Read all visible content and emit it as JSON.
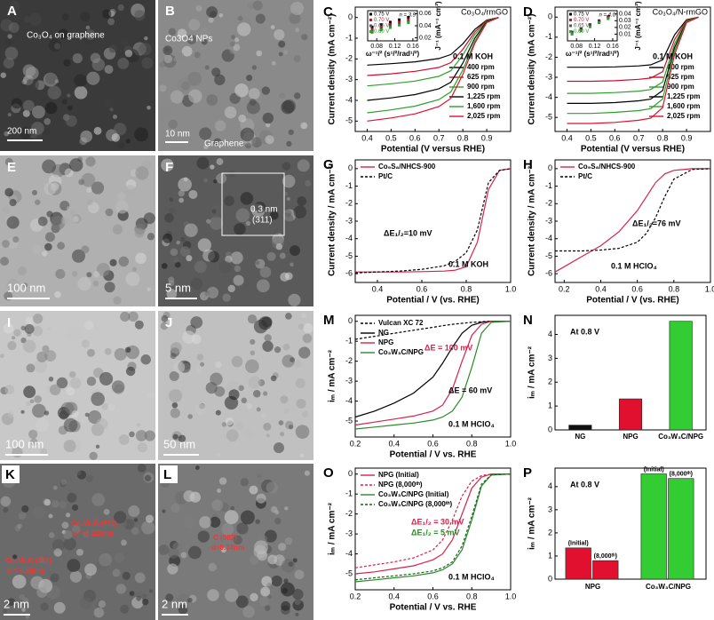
{
  "images": [
    {
      "label": "A",
      "texts": [
        "Co₃O₄ on graphene",
        "200 nm"
      ]
    },
    {
      "label": "B",
      "texts": [
        "Co3O4 NPs",
        "10 nm",
        "Graphene"
      ]
    },
    {
      "label": "E",
      "texts": [
        "100 nm"
      ]
    },
    {
      "label": "F",
      "texts": [
        "0.3 nm",
        "(311)",
        "5 nm"
      ]
    },
    {
      "label": "I",
      "texts": [
        "100 nm"
      ]
    },
    {
      "label": "J",
      "texts": [
        "50 nm"
      ]
    },
    {
      "label": "K",
      "texts": [
        "Co₃W₃C (511)",
        "d = 0.223nm",
        "Co₃W₃C (311)",
        "d = 0.33nm",
        "2 nm"
      ]
    },
    {
      "label": "L",
      "texts": [
        "C (002)",
        "d=0.34nm",
        "2 nm"
      ]
    }
  ],
  "chart_data": [
    {
      "type": "line",
      "label": "C",
      "title": "Co₃O₄/rmGO",
      "xlabel": "Potential (V versus RHE)",
      "ylabel": "Current density (mA cm⁻²)",
      "annotations": [
        {
          "text": "0.1 M KOH",
          "color": "#000"
        }
      ],
      "xlim": [
        0.35,
        1.0
      ],
      "xticks": [
        0.4,
        0.5,
        0.6,
        0.7,
        0.8,
        0.9
      ],
      "ylim": [
        -5.5,
        0.5
      ],
      "yticks": [
        -5,
        -4,
        -3,
        -2,
        -1,
        0
      ],
      "x": [
        0.4,
        0.5,
        0.6,
        0.7,
        0.75,
        0.8,
        0.85,
        0.9,
        0.95
      ],
      "series": [
        {
          "name": "400 rpm",
          "color": "#000000",
          "values": [
            -2.3,
            -2.23,
            -2.14,
            -1.98,
            -1.79,
            -1.27,
            -0.58,
            -0.12,
            0
          ]
        },
        {
          "name": "625 rpm",
          "color": "#c8102e",
          "values": [
            -2.8,
            -2.72,
            -2.6,
            -2.41,
            -2.18,
            -1.54,
            -0.7,
            -0.14,
            0
          ]
        },
        {
          "name": "900 rpm",
          "color": "#2ca02c",
          "values": [
            -3.3,
            -3.2,
            -3.07,
            -2.84,
            -2.57,
            -1.82,
            -0.83,
            -0.17,
            0
          ]
        },
        {
          "name": "1,225 rpm",
          "color": "#000000",
          "values": [
            -4.0,
            -3.88,
            -3.72,
            -3.44,
            -3.12,
            -2.2,
            -1.0,
            -0.2,
            0
          ]
        },
        {
          "name": "1,600 rpm",
          "color": "#2ca02c",
          "values": [
            -4.6,
            -4.46,
            -4.28,
            -3.96,
            -3.59,
            -2.53,
            -1.15,
            -0.23,
            0
          ]
        },
        {
          "name": "2,025 rpm",
          "color": "#e0102e",
          "values": [
            -5.0,
            -4.85,
            -4.65,
            -4.3,
            -3.9,
            -2.75,
            -1.25,
            -0.25,
            0
          ]
        }
      ],
      "inset": {
        "type": "scatter",
        "xlabel": "ω⁻¹/² (s¹/²/rad¹/²)",
        "ylabel": "J⁻¹ (mA⁻¹ cm²)",
        "annotations": [
          {
            "text": "n = 3.9",
            "color": "#000"
          }
        ],
        "xlim": [
          0.06,
          0.17
        ],
        "xticks": [
          0.08,
          0.12,
          0.16
        ],
        "ylim": [
          0.015,
          0.065
        ],
        "yticks": [
          0.02,
          0.04,
          0.06
        ],
        "x": [
          0.07,
          0.09,
          0.11,
          0.13,
          0.15
        ],
        "series": [
          {
            "name": "0.75 V",
            "color": "#000000",
            "values": [
              0.038,
              0.042,
              0.046,
              0.05,
              0.054
            ]
          },
          {
            "name": "0.70 V",
            "color": "#c8102e",
            "values": [
              0.034,
              0.038,
              0.042,
              0.046,
              0.05
            ]
          },
          {
            "name": "0.65 V",
            "color": "#555555",
            "values": [
              0.031,
              0.035,
              0.039,
              0.043,
              0.047
            ]
          },
          {
            "name": "0.60 V",
            "color": "#2ca02c",
            "values": [
              0.029,
              0.033,
              0.037,
              0.041,
              0.045
            ]
          }
        ]
      }
    },
    {
      "type": "line",
      "label": "D",
      "title": "Co₃O₄/N-rmGO",
      "xlabel": "Potential (V versus RHE)",
      "ylabel": "Current density (mA cm⁻²)",
      "annotations": [
        {
          "text": "0.1 M KOH",
          "color": "#000"
        }
      ],
      "xlim": [
        0.35,
        1.0
      ],
      "xticks": [
        0.4,
        0.5,
        0.6,
        0.7,
        0.8,
        0.9
      ],
      "ylim": [
        -5.7,
        0.5
      ],
      "yticks": [
        -5,
        -4,
        -3,
        -2,
        -1,
        0
      ],
      "x": [
        0.4,
        0.5,
        0.6,
        0.7,
        0.75,
        0.8,
        0.85,
        0.9,
        0.95
      ],
      "series": [
        {
          "name": "400 rpm",
          "color": "#000000",
          "values": [
            -2.5,
            -2.5,
            -2.48,
            -2.43,
            -2.38,
            -2.13,
            -0.88,
            -0.13,
            0
          ]
        },
        {
          "name": "625 rpm",
          "color": "#c8102e",
          "values": [
            -3.2,
            -3.2,
            -3.17,
            -3.1,
            -3.04,
            -2.72,
            -1.12,
            -0.16,
            0
          ]
        },
        {
          "name": "900 rpm",
          "color": "#2ca02c",
          "values": [
            -3.8,
            -3.8,
            -3.76,
            -3.69,
            -3.61,
            -3.23,
            -1.33,
            -0.19,
            0
          ]
        },
        {
          "name": "1,225 rpm",
          "color": "#000000",
          "values": [
            -4.3,
            -4.3,
            -4.26,
            -4.17,
            -4.09,
            -3.66,
            -1.51,
            -0.22,
            0
          ]
        },
        {
          "name": "1,600 rpm",
          "color": "#2ca02c",
          "values": [
            -4.8,
            -4.8,
            -4.75,
            -4.66,
            -4.56,
            -4.08,
            -1.68,
            -0.24,
            0
          ]
        },
        {
          "name": "2,025 rpm",
          "color": "#e0102e",
          "values": [
            -5.3,
            -5.3,
            -5.25,
            -5.14,
            -5.04,
            -4.51,
            -1.86,
            -0.27,
            0
          ]
        }
      ],
      "inset": {
        "type": "scatter",
        "xlabel": "ω⁻¹/² (s¹/²/rad¹/²)",
        "ylabel": "J⁻¹ (mA⁻¹ cm²)",
        "annotations": [
          {
            "text": "n = 4.0",
            "color": "#000"
          }
        ],
        "xlim": [
          0.06,
          0.17
        ],
        "xticks": [
          0.08,
          0.12,
          0.16
        ],
        "ylim": [
          0.0,
          0.045
        ],
        "yticks": [
          0.01,
          0.02,
          0.03,
          0.04
        ],
        "x": [
          0.07,
          0.09,
          0.11,
          0.13,
          0.15
        ],
        "series": [
          {
            "name": "0.75 V",
            "color": "#000000",
            "values": [
              0.013,
              0.018,
              0.024,
              0.03,
              0.036
            ]
          },
          {
            "name": "0.70 V",
            "color": "#c8102e",
            "values": [
              0.012,
              0.017,
              0.023,
              0.029,
              0.035
            ]
          },
          {
            "name": "0.65 V",
            "color": "#555555",
            "values": [
              0.011,
              0.016,
              0.022,
              0.028,
              0.034
            ]
          },
          {
            "name": "0.60 V",
            "color": "#2ca02c",
            "values": [
              0.01,
              0.015,
              0.021,
              0.027,
              0.033
            ]
          }
        ]
      }
    },
    {
      "type": "line",
      "label": "G",
      "xlabel": "Potential / V (vs. RHE)",
      "ylabel": "Current density / mA cm⁻²",
      "annotations": [
        {
          "text": "ΔE₁/₂=10 mV",
          "color": "#000"
        },
        {
          "text": "0.1 M KOH",
          "color": "#000"
        }
      ],
      "xlim": [
        0.3,
        1.0
      ],
      "xticks": [
        0.4,
        0.6,
        0.8,
        {
          "value": 1.0,
          "label": "1.0"
        }
      ],
      "ylim": [
        -6.5,
        0.5
      ],
      "yticks": [
        -6,
        -5,
        -4,
        -3,
        -2,
        -1,
        0
      ],
      "x": [
        0.3,
        0.4,
        0.5,
        0.6,
        0.7,
        0.75,
        0.8,
        0.85,
        0.9,
        0.95,
        1.0
      ],
      "series": [
        {
          "name": "Co₉S₈/NHCS-900",
          "color": "#d6224b",
          "dashed": false,
          "values": [
            -5.9,
            -5.9,
            -5.9,
            -5.88,
            -5.85,
            -5.8,
            -5.6,
            -4.2,
            -1.2,
            -0.1,
            0
          ]
        },
        {
          "name": "Pt/C",
          "color": "#000000",
          "dashed": true,
          "values": [
            -5.95,
            -5.9,
            -5.85,
            -5.75,
            -5.55,
            -5.3,
            -4.8,
            -3.5,
            -0.8,
            -0.1,
            0
          ]
        }
      ]
    },
    {
      "type": "line",
      "label": "H",
      "xlabel": "Potential / V (vs. RHE)",
      "ylabel": "Current density / mA cm⁻²",
      "annotations": [
        {
          "text": "ΔE₁/₂=76 mV",
          "color": "#000"
        },
        {
          "text": "0.1 M HClO₄",
          "color": "#000"
        }
      ],
      "xlim": [
        0.15,
        1.0
      ],
      "xticks": [
        0.2,
        0.4,
        0.6,
        0.8,
        {
          "value": 1.0,
          "label": "1.0"
        }
      ],
      "ylim": [
        -6.5,
        0.5
      ],
      "yticks": [
        -6,
        -5,
        -4,
        -3,
        -2,
        -1,
        0
      ],
      "x": [
        0.15,
        0.2,
        0.3,
        0.4,
        0.5,
        0.6,
        0.65,
        0.7,
        0.75,
        0.8,
        0.9,
        1.0
      ],
      "series": [
        {
          "name": "Co₉S₈/NHCS-900",
          "color": "#d6224b",
          "dashed": false,
          "values": [
            -5.9,
            -5.6,
            -5.0,
            -4.4,
            -3.6,
            -2.4,
            -1.6,
            -0.8,
            -0.3,
            -0.1,
            0,
            0
          ]
        },
        {
          "name": "Pt/C",
          "color": "#000000",
          "dashed": true,
          "values": [
            -4.7,
            -4.7,
            -4.7,
            -4.65,
            -4.55,
            -4.2,
            -3.7,
            -2.8,
            -1.6,
            -0.6,
            -0.05,
            0
          ]
        }
      ]
    },
    {
      "type": "line",
      "label": "M",
      "xlabel": "Potential / V vs. RHE",
      "ylabel": "iₘ / mA cm⁻²",
      "annotations": [
        {
          "text": "ΔE = 100 mV",
          "color": "#d6224b"
        },
        {
          "text": "ΔE = 60 mV",
          "color": "#000"
        },
        {
          "text": "0.1 M HClO₄",
          "color": "#000"
        }
      ],
      "xlim": [
        0.2,
        1.0
      ],
      "xticks": [
        0.2,
        0.4,
        0.6,
        0.8,
        {
          "value": 1.0,
          "label": "1.0"
        }
      ],
      "ylim": [
        -5.8,
        0.3
      ],
      "yticks": [
        -5,
        -4,
        -3,
        -2,
        -1,
        0
      ],
      "x": [
        0.2,
        0.3,
        0.4,
        0.5,
        0.6,
        0.65,
        0.7,
        0.75,
        0.8,
        0.85,
        0.9,
        1.0
      ],
      "series": [
        {
          "name": "Vulcan XC 72",
          "color": "#000000",
          "dashed": true,
          "values": [
            -0.9,
            -0.75,
            -0.6,
            -0.45,
            -0.3,
            -0.22,
            -0.15,
            -0.1,
            -0.05,
            -0.02,
            0,
            0
          ]
        },
        {
          "name": "NG",
          "color": "#000000",
          "dashed": false,
          "values": [
            -4.8,
            -4.5,
            -4.1,
            -3.6,
            -2.8,
            -2.1,
            -1.3,
            -0.6,
            -0.2,
            -0.05,
            0,
            0
          ]
        },
        {
          "name": "NPG",
          "color": "#d6224b",
          "dashed": false,
          "values": [
            -5.2,
            -5.05,
            -4.9,
            -4.75,
            -4.5,
            -4.2,
            -3.4,
            -2.0,
            -0.7,
            -0.15,
            0,
            0
          ]
        },
        {
          "name": "Co₃W₃C/NPG",
          "color": "#2a8a2a",
          "dashed": false,
          "values": [
            -5.4,
            -5.3,
            -5.2,
            -5.1,
            -4.95,
            -4.8,
            -4.5,
            -3.8,
            -2.3,
            -0.6,
            -0.05,
            0
          ]
        }
      ]
    },
    {
      "type": "bar",
      "label": "N",
      "ylabel": "iₘ / mA cm⁻²",
      "annotations": [
        {
          "text": "At 0.8 V",
          "color": "#000"
        }
      ],
      "categories": [
        "NG",
        "NPG",
        "Co₃W₃C/NPG"
      ],
      "values": [
        0.2,
        1.3,
        4.55
      ],
      "colors": [
        "#111111",
        "#e0102e",
        "#33cc33"
      ],
      "ylim": [
        0,
        4.8
      ],
      "yticks": [
        0,
        1,
        2,
        3,
        4
      ]
    },
    {
      "type": "line",
      "label": "O",
      "xlabel": "Potential / V vs. RHE",
      "ylabel": "iₘ / mA cm⁻²",
      "annotations": [
        {
          "text": "ΔE₁/₂ = 30 mV",
          "color": "#d6224b"
        },
        {
          "text": "ΔE₁/₂ = 5 mV",
          "color": "#2a8a2a"
        },
        {
          "text": "0.1 M HClO₄",
          "color": "#000"
        }
      ],
      "xlim": [
        0.2,
        1.0
      ],
      "xticks": [
        0.2,
        0.4,
        0.6,
        0.8,
        {
          "value": 1.0,
          "label": "1.0"
        }
      ],
      "ylim": [
        -5.8,
        0.3
      ],
      "yticks": [
        -5,
        -4,
        -3,
        -2,
        -1,
        0
      ],
      "x": [
        0.2,
        0.3,
        0.4,
        0.5,
        0.6,
        0.65,
        0.7,
        0.75,
        0.8,
        0.85,
        0.9,
        1.0
      ],
      "series": [
        {
          "name": "NPG (Initial)",
          "color": "#d6224b",
          "dashed": false,
          "values": [
            -5.0,
            -4.9,
            -4.75,
            -4.6,
            -4.3,
            -4.0,
            -3.3,
            -2.0,
            -0.7,
            -0.15,
            0,
            0
          ]
        },
        {
          "name": "NPG (8,000ᵗʰ)",
          "color": "#d6224b",
          "dashed": true,
          "values": [
            -4.7,
            -4.55,
            -4.4,
            -4.2,
            -3.8,
            -3.3,
            -2.3,
            -1.1,
            -0.35,
            -0.08,
            0,
            0
          ]
        },
        {
          "name": "Co₃W₃C/NPG (Initial)",
          "color": "#2a8a2a",
          "dashed": false,
          "values": [
            -5.4,
            -5.3,
            -5.2,
            -5.1,
            -4.95,
            -4.8,
            -4.5,
            -3.8,
            -2.3,
            -0.6,
            -0.05,
            0
          ]
        },
        {
          "name": "Co₃W₃C/NPG (8,000ᵗʰ)",
          "color": "#1f5f1f",
          "dashed": true,
          "values": [
            -5.3,
            -5.2,
            -5.1,
            -5.0,
            -4.85,
            -4.7,
            -4.4,
            -3.6,
            -2.1,
            -0.5,
            -0.04,
            0
          ]
        }
      ]
    },
    {
      "type": "grouped_bar",
      "label": "P",
      "ylabel": "iₘ / mA cm⁻²",
      "annotations": [
        {
          "text": "At 0.8 V",
          "color": "#000"
        }
      ],
      "categories": [
        "NPG",
        "Co₃W₃C/NPG"
      ],
      "colors": [
        "#e0102e",
        "#33cc33"
      ],
      "series": [
        {
          "name": "(Initial)",
          "values": [
            1.35,
            4.55
          ]
        },
        {
          "name": "(8,000ᵗʰ)",
          "values": [
            0.8,
            4.35
          ]
        }
      ],
      "ylim": [
        0,
        4.8
      ],
      "yticks": [
        0,
        1,
        2,
        3,
        4
      ]
    }
  ]
}
